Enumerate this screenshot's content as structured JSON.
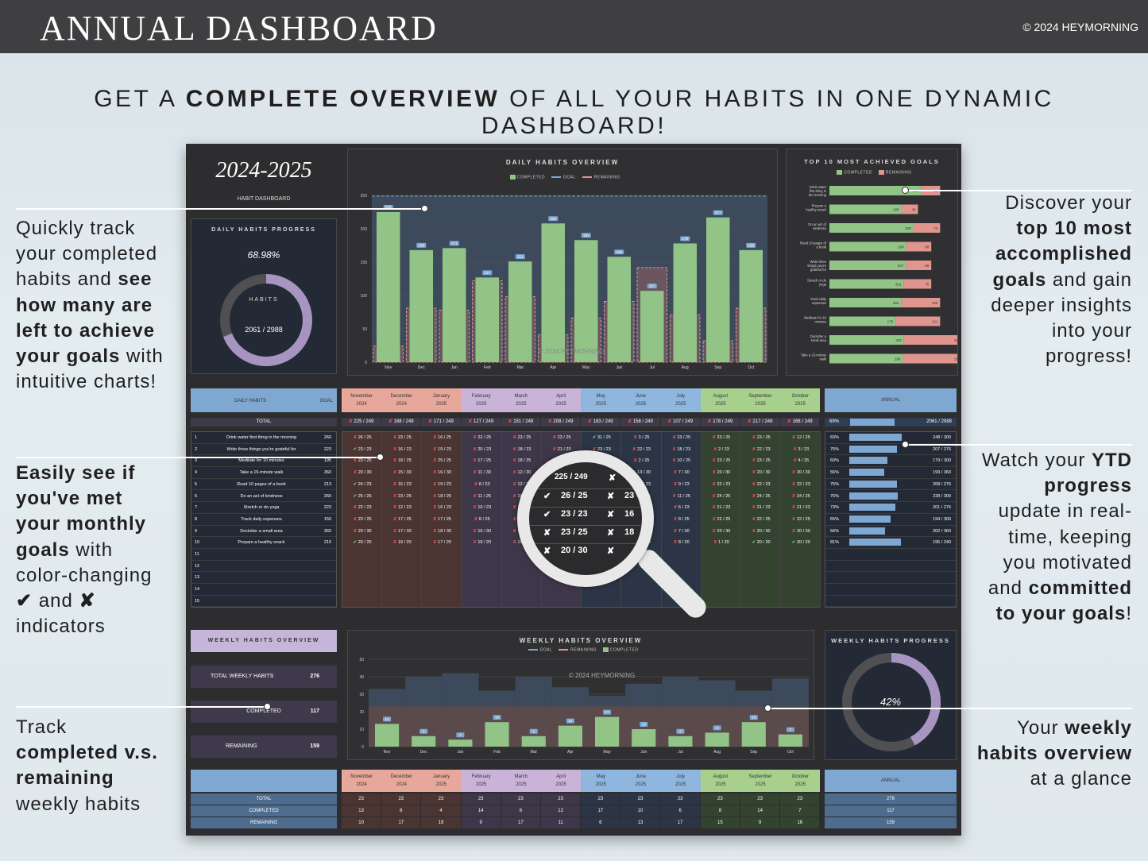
{
  "header": {
    "title": "ANNUAL DASHBOARD",
    "copyright": "© 2024 HEYMORNING"
  },
  "headline": {
    "pre": "GET A ",
    "bold": "COMPLETE OVERVIEW",
    "post": " OF ALL YOUR HABITS IN ONE DYNAMIC DASHBOARD!"
  },
  "annotations": {
    "left1": [
      "Quickly track",
      "your completed",
      "habits and ",
      "see",
      "how many are",
      "left to achieve",
      "your goals",
      " with",
      "intuitive charts!"
    ],
    "left2": [
      "Easily see if",
      "you've met",
      "your monthly",
      "goals",
      " with",
      "color-changing",
      "✔",
      " and ",
      "✘",
      "indicators"
    ],
    "left3": [
      "Track",
      "completed v.s.",
      "remaining",
      "weekly habits"
    ],
    "right1": [
      "Discover your",
      "top 10 most",
      "accomplished",
      "goals",
      " and gain",
      "deeper insights",
      "into your",
      "progress!"
    ],
    "right2": [
      "Watch your ",
      "YTD",
      "progress",
      "update in real-",
      "time, keeping",
      "you motivated",
      "and ",
      "committed",
      "to your goals",
      "!"
    ],
    "right3": [
      "Your ",
      "weekly",
      "habits overview",
      "at a glance"
    ]
  },
  "dashboard": {
    "year": "2024-2025",
    "subtitle": "HABIT DASHBOARD",
    "watermark": "© 2024 HEYMORNING",
    "daily_progress": {
      "title": "DAILY HABITS PROGRESS",
      "percent": "68.98%",
      "label": "HABITS",
      "count": "2061  /  2988",
      "fraction": 0.6898
    },
    "daily_overview": {
      "title": "DAILY HABITS OVERVIEW",
      "legend": [
        "COMPLETED",
        "GOAL",
        "REMAINING"
      ]
    },
    "top10": {
      "title": "TOP 10 MOST ACHIEVED GOALS",
      "legend": [
        "COMPLETED",
        "REMAINING"
      ]
    },
    "table": {
      "daily_label": "DAILY HABITS",
      "goal_label": "GOAL",
      "total_label": "TOTAL",
      "annual_label": "ANNUAL",
      "months": [
        [
          "November",
          "2024"
        ],
        [
          "December",
          "2024"
        ],
        [
          "January",
          "2025"
        ],
        [
          "February",
          "2025"
        ],
        [
          "March",
          "2025"
        ],
        [
          "April",
          "2025"
        ],
        [
          "May",
          "2025"
        ],
        [
          "June",
          "2025"
        ],
        [
          "July",
          "2025"
        ],
        [
          "August",
          "2025"
        ],
        [
          "September",
          "2025"
        ],
        [
          "October",
          "2025"
        ]
      ],
      "month_colors": [
        "#e8a79b",
        "#e8a79b",
        "#e8a79b",
        "#c9b3d9",
        "#c9b3d9",
        "#c9b3d9",
        "#8fb6de",
        "#8fb6de",
        "#8fb6de",
        "#a8d08d",
        "#a8d08d",
        "#a8d08d"
      ],
      "col_bg": [
        "#4a3532",
        "#4a3532",
        "#4a3532",
        "#3e3749",
        "#3e3749",
        "#3e3749",
        "#2c3545",
        "#2c3545",
        "#2c3545",
        "#334330",
        "#334330",
        "#334330"
      ],
      "totals": [
        "225 / 249",
        "168 / 249",
        "171 / 249",
        "127 / 249",
        "151 / 249",
        "208 / 249",
        "183 / 249",
        "158 / 249",
        "107 / 249",
        "178 / 249",
        "217 / 249",
        "168 / 249"
      ],
      "annual_total": {
        "pct": "69%",
        "val": "2061  /  2988",
        "fraction": 0.69
      },
      "rows": [
        {
          "n": "1",
          "name": "Drink water first thing in the morning",
          "goal": "260",
          "pct": "83%",
          "ytd": "248  /  300",
          "frac": 0.83,
          "cells": [
            [
              "x",
              "26 / 25"
            ],
            [
              "x",
              "23 / 25"
            ],
            [
              "x",
              "16 / 25"
            ],
            [
              "x",
              "22 / 25"
            ],
            [
              "x",
              "23 / 25"
            ],
            [
              "x",
              "23 / 25"
            ],
            [
              "c",
              "31 / 25"
            ],
            [
              "x",
              "3 / 25"
            ],
            [
              "x",
              "23 / 25"
            ],
            [
              "x",
              "23 / 25"
            ],
            [
              "x",
              "23 / 25"
            ],
            [
              "x",
              "12 / 25"
            ]
          ]
        },
        {
          "n": "2",
          "name": "Write three things you're grateful for",
          "goal": "223",
          "pct": "75%",
          "ytd": "207  /  276",
          "frac": 0.75,
          "cells": [
            [
              "c",
              "23 / 23"
            ],
            [
              "x",
              "16 / 23"
            ],
            [
              "x",
              "19 / 23"
            ],
            [
              "x",
              "20 / 23"
            ],
            [
              "x",
              "18 / 23"
            ],
            [
              "x",
              "21 / 23"
            ],
            [
              "x",
              "23 / 23"
            ],
            [
              "x",
              "22 / 23"
            ],
            [
              "x",
              "18 / 23"
            ],
            [
              "x",
              "2 / 23"
            ],
            [
              "x",
              "22 / 23"
            ],
            [
              "x",
              "3 / 23"
            ]
          ]
        },
        {
          "n": "3",
          "name": "Meditate for 10 minutes",
          "goal": "195",
          "pct": "60%",
          "ytd": "179  /  300",
          "frac": 0.6,
          "cells": [
            [
              "x",
              "23 / 25"
            ],
            [
              "x",
              "18 / 25"
            ],
            [
              "x",
              "25 / 25"
            ],
            [
              "x",
              "17 / 25"
            ],
            [
              "x",
              "18 / 25"
            ],
            [
              "x",
              "18 / 25"
            ],
            [
              "x",
              "2 / 25"
            ],
            [
              "x",
              "2 / 25"
            ],
            [
              "x",
              "10 / 25"
            ],
            [
              "x",
              "23 / 25"
            ],
            [
              "x",
              "23 / 25"
            ],
            [
              "x",
              "4 / 25"
            ]
          ]
        },
        {
          "n": "4",
          "name": "Take a 15-minute walk",
          "goal": "360",
          "pct": "55%",
          "ytd": "199  /  360",
          "frac": 0.55,
          "cells": [
            [
              "x",
              "20 / 30"
            ],
            [
              "x",
              "15 / 30"
            ],
            [
              "x",
              "16 / 30"
            ],
            [
              "x",
              "11 / 30"
            ],
            [
              "x",
              "12 / 30"
            ],
            [
              "x",
              "22 / 30"
            ],
            [
              "x",
              "21 / 30"
            ],
            [
              "x",
              "13 / 30"
            ],
            [
              "x",
              "7 / 30"
            ],
            [
              "x",
              "20 / 30"
            ],
            [
              "x",
              "20 / 30"
            ],
            [
              "x",
              "20 / 30"
            ]
          ]
        },
        {
          "n": "5",
          "name": "Read 10 pages of a book",
          "goal": "213",
          "pct": "75%",
          "ytd": "208  /  276",
          "frac": 0.75,
          "cells": [
            [
              "c",
              "24 / 23"
            ],
            [
              "x",
              "15 / 23"
            ],
            [
              "x",
              "19 / 23"
            ],
            [
              "x",
              "8 / 23"
            ],
            [
              "x",
              "12 / 23"
            ],
            [
              "x",
              "20 / 23"
            ],
            [
              "x",
              "21 / 23"
            ],
            [
              "x",
              "16 / 23"
            ],
            [
              "x",
              "9 / 23"
            ],
            [
              "x",
              "22 / 23"
            ],
            [
              "x",
              "22 / 23"
            ],
            [
              "x",
              "22 / 23"
            ]
          ]
        },
        {
          "n": "6",
          "name": "Do an act of kindness",
          "goal": "260",
          "pct": "76%",
          "ytd": "228  /  300",
          "frac": 0.76,
          "cells": [
            [
              "c",
              "25 / 25"
            ],
            [
              "x",
              "23 / 25"
            ],
            [
              "x",
              "18 / 25"
            ],
            [
              "x",
              "11 / 25"
            ],
            [
              "x",
              "18 / 25"
            ],
            [
              "x",
              "20 / 25"
            ],
            [
              "x",
              "22 / 25"
            ],
            [
              "x",
              "18 / 25"
            ],
            [
              "x",
              "11 / 25"
            ],
            [
              "x",
              "24 / 25"
            ],
            [
              "x",
              "24 / 25"
            ],
            [
              "x",
              "24 / 25"
            ]
          ]
        },
        {
          "n": "7",
          "name": "Stretch or do yoga",
          "goal": "223",
          "pct": "73%",
          "ytd": "201  /  276",
          "frac": 0.73,
          "cells": [
            [
              "x",
              "22 / 23"
            ],
            [
              "x",
              "12 / 23"
            ],
            [
              "x",
              "16 / 23"
            ],
            [
              "x",
              "10 / 23"
            ],
            [
              "x",
              "18 / 23"
            ],
            [
              "x",
              "22 / 23"
            ],
            [
              "x",
              "21 / 23"
            ],
            [
              "x",
              "20 / 23"
            ],
            [
              "x",
              "6 / 23"
            ],
            [
              "x",
              "21 / 23"
            ],
            [
              "x",
              "21 / 23"
            ],
            [
              "x",
              "21 / 23"
            ]
          ]
        },
        {
          "n": "8",
          "name": "Track daily expenses",
          "goal": "150",
          "pct": "65%",
          "ytd": "194  /  300",
          "frac": 0.65,
          "cells": [
            [
              "x",
              "23 / 25"
            ],
            [
              "x",
              "17 / 25"
            ],
            [
              "x",
              "17 / 25"
            ],
            [
              "x",
              "8 / 25"
            ],
            [
              "x",
              "11 / 25"
            ],
            [
              "x",
              "12 / 25"
            ],
            [
              "x",
              "20 / 25"
            ],
            [
              "x",
              "16 / 25"
            ],
            [
              "x",
              "8 / 25"
            ],
            [
              "x",
              "22 / 25"
            ],
            [
              "x",
              "22 / 25"
            ],
            [
              "x",
              "22 / 25"
            ]
          ]
        },
        {
          "n": "9",
          "name": "Declutter a small area",
          "goal": "360",
          "pct": "56%",
          "ytd": "202  /  360",
          "frac": 0.56,
          "cells": [
            [
              "x",
              "20 / 30"
            ],
            [
              "x",
              "17 / 30"
            ],
            [
              "x",
              "18 / 30"
            ],
            [
              "x",
              "10 / 30"
            ],
            [
              "x",
              "12 / 30"
            ],
            [
              "x",
              "23 / 30"
            ],
            [
              "x",
              "20 / 30"
            ],
            [
              "x",
              "18 / 30"
            ],
            [
              "x",
              "7 / 30"
            ],
            [
              "x",
              "20 / 30"
            ],
            [
              "x",
              "20 / 30"
            ],
            [
              "x",
              "20 / 30"
            ]
          ]
        },
        {
          "n": "10",
          "name": "Prepare a healthy snack",
          "goal": "210",
          "pct": "81%",
          "ytd": "195  /  240",
          "frac": 0.81,
          "cells": [
            [
              "c",
              "20 / 20"
            ],
            [
              "x",
              "19 / 20"
            ],
            [
              "x",
              "17 / 20"
            ],
            [
              "x",
              "10 / 20"
            ],
            [
              "x",
              "16 / 20"
            ],
            [
              "x",
              "18 / 20"
            ],
            [
              "x",
              "18 / 20"
            ],
            [
              "x",
              "16 / 20"
            ],
            [
              "x",
              "8 / 20"
            ],
            [
              "x",
              "1 / 20"
            ],
            [
              "c",
              "20 / 20"
            ],
            [
              "c",
              "20 / 20"
            ]
          ]
        },
        {
          "n": "11"
        },
        {
          "n": "12"
        },
        {
          "n": "13"
        },
        {
          "n": "14"
        },
        {
          "n": "15"
        }
      ]
    },
    "magnifier": {
      "total": "225  /  249",
      "rows": [
        [
          "c",
          "26 / 25",
          "23"
        ],
        [
          "c",
          "23 / 23",
          "16"
        ],
        [
          "x",
          "23 / 25",
          "18"
        ],
        [
          "x",
          "20 / 30",
          ""
        ]
      ]
    },
    "weekly_overview": {
      "title": "WEEKLY HABITS OVERVIEW",
      "total_label": "TOTAL WEEKLY HABITS",
      "total": "276",
      "completed_label": "COMPLETED",
      "completed": "117",
      "remaining_label": "REMAINING",
      "remaining": "159"
    },
    "weekly_chart": {
      "title": "WEEKLY HABITS OVERVIEW",
      "legend": [
        "GOAL",
        "REMAINING",
        "COMPLETED"
      ]
    },
    "weekly_progress": {
      "title": "WEEKLY HABITS PROGRESS",
      "percent": "42%",
      "fraction": 0.42
    },
    "bottom_table": {
      "labels": [
        "TOTAL",
        "COMPLETED",
        "REMAINING"
      ],
      "annual": [
        "276",
        "117",
        "159"
      ],
      "total": [
        "23",
        "23",
        "23",
        "23",
        "23",
        "23",
        "23",
        "23",
        "23",
        "23",
        "23",
        "23"
      ],
      "completed": [
        "13",
        "6",
        "4",
        "14",
        "6",
        "12",
        "17",
        "10",
        "6",
        "8",
        "14",
        "7"
      ],
      "remaining": [
        "10",
        "17",
        "19",
        "9",
        "17",
        "11",
        "6",
        "13",
        "17",
        "15",
        "9",
        "16"
      ]
    }
  },
  "chart_data": [
    {
      "type": "bar",
      "title": "DAILY HABITS OVERVIEW",
      "categories": [
        "Nov",
        "Dec",
        "Jan",
        "Feb",
        "Mar",
        "Apr",
        "May",
        "Jun",
        "Jul",
        "Aug",
        "Sep",
        "Oct"
      ],
      "series": [
        {
          "name": "COMPLETED",
          "values": [
            225,
            168,
            171,
            127,
            151,
            208,
            183,
            158,
            107,
            178,
            217,
            168
          ]
        },
        {
          "name": "GOAL",
          "values": [
            249,
            249,
            249,
            249,
            249,
            249,
            249,
            249,
            249,
            249,
            249,
            249
          ]
        },
        {
          "name": "REMAINING",
          "values": [
            24,
            81,
            78,
            122,
            98,
            41,
            66,
            91,
            142,
            71,
            32,
            81
          ]
        }
      ],
      "ylim": [
        0,
        250
      ],
      "yticks": [
        0,
        50,
        100,
        150,
        200,
        250
      ]
    },
    {
      "type": "bar",
      "title": "TOP 10 MOST ACHIEVED GOALS",
      "categories": [
        "Drink water first thing in the morning",
        "Prepare a healthy snack",
        "Do an act of kindness",
        "Read 10 pages of a book",
        "Write three things you're grateful for",
        "Stretch or do yoga",
        "Track daily expenses",
        "Meditate for 10 minutes",
        "Declutter a small area",
        "Take a 15-minute walk"
      ],
      "series": [
        {
          "name": "COMPLETED",
          "values": [
            248,
            195,
            228,
            208,
            207,
            201,
            194,
            179,
            202,
            199
          ]
        },
        {
          "name": "REMAINING",
          "values": [
            52,
            45,
            72,
            68,
            69,
            75,
            106,
            121,
            158,
            161
          ]
        }
      ]
    },
    {
      "type": "bar",
      "title": "WEEKLY HABITS OVERVIEW",
      "categories": [
        "Nov",
        "Dec",
        "Jan",
        "Feb",
        "Mar",
        "Apr",
        "May",
        "Jun",
        "Jul",
        "Aug",
        "Sep",
        "Oct"
      ],
      "series": [
        {
          "name": "GOAL",
          "values": [
            23,
            23,
            23,
            23,
            23,
            23,
            23,
            23,
            23,
            23,
            23,
            23
          ]
        },
        {
          "name": "REMAINING",
          "values": [
            10,
            17,
            19,
            9,
            17,
            11,
            6,
            13,
            17,
            15,
            9,
            16
          ]
        },
        {
          "name": "COMPLETED",
          "values": [
            13,
            6,
            4,
            14,
            6,
            12,
            17,
            10,
            6,
            8,
            14,
            7
          ]
        }
      ],
      "ylim": [
        0,
        50
      ],
      "yticks": [
        0,
        10,
        20,
        30,
        40,
        50
      ]
    }
  ]
}
